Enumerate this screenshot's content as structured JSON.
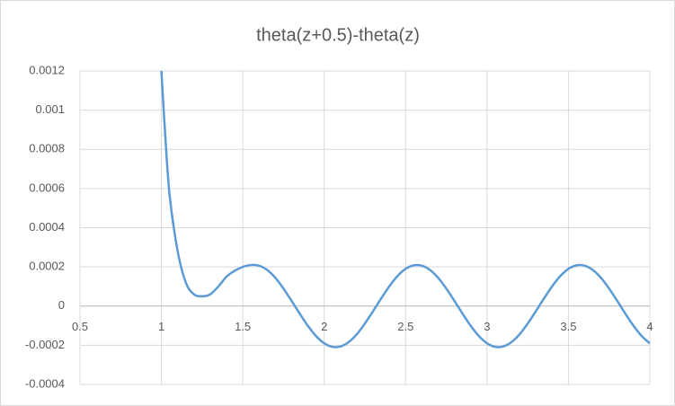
{
  "chart_data": {
    "type": "line",
    "title": "theta(z+0.5)-theta(z)",
    "x": [
      1,
      1.02,
      1.05,
      1.1,
      1.15,
      1.2,
      1.25,
      1.3,
      1.35,
      1.4,
      1.45,
      1.5,
      1.55,
      1.6,
      1.65,
      1.7,
      1.75,
      1.8,
      1.85,
      1.9,
      1.95,
      2.0,
      2.05,
      2.1,
      2.15,
      2.2,
      2.25,
      2.3,
      2.35,
      2.4,
      2.45,
      2.5,
      2.55,
      2.6,
      2.65,
      2.7,
      2.75,
      2.8,
      2.85,
      2.9,
      2.95,
      3.0,
      3.05,
      3.1,
      3.15,
      3.2,
      3.25,
      3.3,
      3.35,
      3.4,
      3.45,
      3.5,
      3.55,
      3.6,
      3.65,
      3.7,
      3.75,
      3.8,
      3.85,
      3.9,
      3.95,
      4.0
    ],
    "series": [
      {
        "color": "#5b9bd5",
        "values": [
          0.0012,
          0.00092,
          0.00057,
          0.00028,
          0.00012,
          6e-05,
          5e-05,
          6e-05,
          0.0001,
          0.00015,
          0.00018,
          0.0002,
          0.00021,
          0.000206,
          0.000184,
          0.000144,
          8.9e-05,
          2.6e-05,
          -3.9e-05,
          -0.000101,
          -0.000153,
          -0.00019,
          -0.000208,
          -0.000206,
          -0.000184,
          -0.000144,
          -8.9e-05,
          -2.6e-05,
          3.9e-05,
          0.000101,
          0.000153,
          0.00019,
          0.000208,
          0.000206,
          0.000184,
          0.000144,
          8.9e-05,
          2.6e-05,
          -3.9e-05,
          -0.000101,
          -0.000153,
          -0.00019,
          -0.000208,
          -0.000206,
          -0.000184,
          -0.000144,
          -8.9e-05,
          -2.6e-05,
          3.9e-05,
          0.000101,
          0.000153,
          0.00019,
          0.000208,
          0.000206,
          0.000184,
          0.000144,
          8.9e-05,
          2.6e-05,
          -3.9e-05,
          -0.000101,
          -0.000153,
          -0.00019
        ]
      }
    ],
    "xlim": [
      0.5,
      4
    ],
    "xticks": [
      0.5,
      1,
      1.5,
      2,
      2.5,
      3,
      3.5,
      4
    ],
    "ylim": [
      -0.0004,
      0.0012
    ],
    "yticks": [
      -0.0004,
      -0.0002,
      0,
      0.0002,
      0.0004,
      0.0006,
      0.0008,
      0.001,
      0.0012
    ],
    "grid": true
  }
}
